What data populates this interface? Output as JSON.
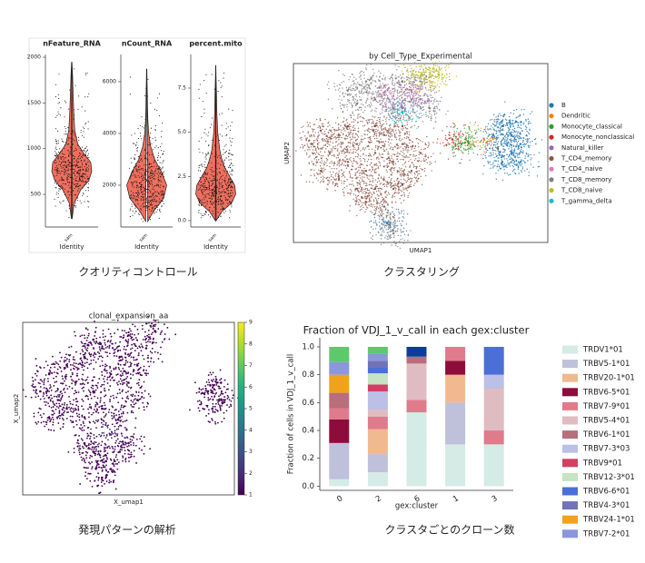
{
  "captions": [
    "クオリティコントロール",
    "クラスタリング",
    "発現パターンの解析",
    "クラスタごとのクローン数"
  ],
  "chart_data": [
    {
      "type": "violin",
      "title": "nFeature_RNA",
      "xlabel": "Identity",
      "categories": [
        "sam"
      ],
      "color": "#ef6f5f",
      "ylim": [
        143,
        2030
      ],
      "yticks": [
        500,
        1000,
        1500,
        2000
      ],
      "violin": {
        "y": [
          230,
          400,
          550,
          650,
          750,
          850,
          950,
          1050,
          1200,
          1400,
          1600,
          1800,
          1950
        ],
        "width": [
          0.02,
          0.12,
          0.45,
          0.85,
          1.0,
          0.95,
          0.6,
          0.3,
          0.15,
          0.1,
          0.07,
          0.04,
          0.01
        ]
      }
    },
    {
      "type": "violin",
      "title": "nCount_RNA",
      "xlabel": "Identity",
      "categories": [
        "sam"
      ],
      "color": "#ef6f5f",
      "ylim": [
        386,
        7050
      ],
      "yticks": [
        2000,
        4000,
        6000
      ],
      "violin": {
        "y": [
          600,
          1000,
          1500,
          2000,
          2500,
          3000,
          3500,
          4000,
          4500,
          5000,
          5500,
          6000,
          6500
        ],
        "width": [
          0.05,
          0.35,
          0.85,
          1.0,
          0.75,
          0.4,
          0.2,
          0.1,
          0.06,
          0.04,
          0.03,
          0.02,
          0.01
        ]
      }
    },
    {
      "type": "violin",
      "title": "percent.mito",
      "xlabel": "Identity",
      "categories": [
        "sam"
      ],
      "color": "#ef6f5f",
      "ylim": [
        -0.36,
        9.4
      ],
      "yticks": [
        {
          "value": 0,
          "label": "0.0"
        },
        {
          "value": 2.5,
          "label": "2.5"
        },
        {
          "value": 5,
          "label": "5.0"
        },
        {
          "value": 7.5,
          "label": "7.5"
        }
      ],
      "violin": {
        "y": [
          0,
          0.5,
          1,
          1.5,
          2,
          2.5,
          3,
          3.5,
          4,
          5,
          6,
          7,
          8,
          8.8
        ],
        "width": [
          0.02,
          0.3,
          0.8,
          1.0,
          0.95,
          0.7,
          0.45,
          0.3,
          0.2,
          0.1,
          0.06,
          0.04,
          0.02,
          0.005
        ]
      }
    },
    {
      "type": "scatter",
      "title": "by Cell_Type_Experimental",
      "xlabel": "UMAP1",
      "ylabel": "UMAP2",
      "xlim": [
        0,
        28
      ],
      "ylim": [
        0,
        20
      ],
      "legend": "right",
      "series": [
        {
          "name": "B",
          "color": "#1f77b4",
          "x": [
            22,
            23,
            24,
            25,
            24,
            23,
            22.5,
            24.5,
            25,
            10.3
          ],
          "y": [
            12,
            13,
            12,
            11,
            10,
            9,
            10.5,
            13.5,
            9,
            2.2
          ]
        },
        {
          "name": "Dendritic",
          "color": "#ff7f0e",
          "x": [
            21
          ],
          "y": [
            11.5
          ]
        },
        {
          "name": "Monocyte_classical",
          "color": "#2ca02c",
          "x": [
            18.5,
            19.2
          ],
          "y": [
            11,
            11.3
          ]
        },
        {
          "name": "Monocyte_nonclassical",
          "color": "#d62728",
          "x": [
            17.5
          ],
          "y": [
            11.5
          ]
        },
        {
          "name": "Natural_killer",
          "color": "#9467bd",
          "x": [
            12,
            14
          ],
          "y": [
            15,
            16
          ]
        },
        {
          "name": "T_CD4_memory",
          "color": "#8c564b",
          "x": [
            2,
            3,
            4,
            5,
            6,
            7,
            8,
            9,
            10,
            11,
            12,
            13,
            14,
            3,
            5,
            7,
            9,
            11,
            8,
            10,
            12,
            6,
            9,
            12
          ],
          "y": [
            11,
            12.5,
            10,
            12,
            9,
            11,
            8,
            10,
            12,
            9,
            11,
            8,
            10,
            8,
            7,
            6,
            6,
            6,
            4.5,
            4,
            6.5,
            13,
            13,
            13
          ]
        },
        {
          "name": "T_CD4_naive",
          "color": "#e377c2",
          "x": [
            10,
            13
          ],
          "y": [
            16.5,
            17
          ]
        },
        {
          "name": "T_CD8_memory",
          "color": "#7f7f7f",
          "x": [
            6,
            8,
            10,
            12,
            7,
            9,
            11,
            13,
            15,
            14,
            10.5,
            11
          ],
          "y": [
            17,
            18,
            17.5,
            18,
            15.5,
            16,
            15,
            16,
            15,
            18,
            2,
            1
          ]
        },
        {
          "name": "T_CD8_naive",
          "color": "#bcbd22",
          "x": [
            15,
            16,
            14
          ],
          "y": [
            18.5,
            18.8,
            18.7
          ]
        },
        {
          "name": "T_gamma_delta",
          "color": "#17becf",
          "x": [
            12
          ],
          "y": [
            14.5
          ]
        }
      ]
    },
    {
      "type": "colorscatter",
      "title": "clonal_expansion_aa",
      "xlabel": "X_umap1",
      "ylabel": "X_umap2",
      "xlim": [
        0,
        24
      ],
      "ylim": [
        0,
        20
      ],
      "colormap": "viridis",
      "clim": [
        1,
        9
      ],
      "cticks": [
        1,
        2,
        3,
        4,
        5,
        6,
        7,
        8,
        9
      ],
      "x": [
        2,
        3,
        4,
        5,
        6,
        7,
        8,
        9,
        10,
        11,
        12,
        13,
        14,
        5,
        7,
        9,
        11,
        13,
        8,
        12,
        15,
        3,
        7,
        8,
        9,
        10,
        9,
        11,
        10,
        12,
        21,
        22,
        22.5,
        21.5
      ],
      "y": [
        12,
        14,
        11,
        15,
        13,
        16,
        12,
        17,
        14,
        16,
        13,
        15,
        17,
        10,
        9,
        10,
        9,
        11,
        18,
        18.5,
        19,
        9,
        6,
        5,
        4,
        3,
        2,
        5,
        7,
        6,
        12,
        13,
        11,
        10
      ],
      "values": [
        1,
        1,
        1,
        1,
        1,
        1,
        1,
        1,
        1,
        1,
        1,
        1,
        1,
        1,
        1,
        1,
        1,
        1,
        1,
        1,
        1,
        1,
        1,
        1,
        1,
        1,
        1,
        1,
        2,
        1,
        1,
        1,
        1,
        1
      ]
    },
    {
      "type": "stackedbar",
      "title": "Fraction of VDJ_1_v_call in each gex:cluster",
      "xlabel": "gex:cluster",
      "ylabel": "Fraction of cells in VDJ_1_v_call",
      "categories": [
        "0",
        "2",
        "6",
        "1",
        "3"
      ],
      "ylim": [
        -0.03,
        1.065
      ],
      "yticks": [
        {
          "value": 0,
          "label": "0.0"
        },
        {
          "value": 0.2,
          "label": "0.2"
        },
        {
          "value": 0.4,
          "label": "0.4"
        },
        {
          "value": 0.6,
          "label": "0.6"
        },
        {
          "value": 0.8,
          "label": "0.8"
        },
        {
          "value": 1,
          "label": "1.0"
        }
      ],
      "legend": "right",
      "series": [
        {
          "name": "TRDV1*01",
          "color": "#d5ebe6",
          "values": [
            0.05,
            0.1,
            0.53,
            0.3,
            0.3
          ]
        },
        {
          "name": "TRBV5-1*01",
          "color": "#bfc0d9",
          "values": [
            0.26,
            0.13,
            0,
            0.3,
            0
          ]
        },
        {
          "name": "TRBV20-1*01",
          "color": "#f0b98f",
          "values": [
            0,
            0.18,
            0,
            0.2,
            0
          ]
        },
        {
          "name": "TRBV6-5*01",
          "color": "#8e0c3c",
          "values": [
            0.17,
            0,
            0,
            0.1,
            0
          ]
        },
        {
          "name": "TRBV7-9*01",
          "color": "#e07b8c",
          "values": [
            0.08,
            0.09,
            0.09,
            0.1,
            0.1
          ]
        },
        {
          "name": "TRBV5-4*01",
          "color": "#dfbcc2",
          "values": [
            0,
            0.05,
            0.26,
            0,
            0.3
          ]
        },
        {
          "name": "TRBV6-1*01",
          "color": "#b86e7b",
          "values": [
            0.11,
            0,
            0.05,
            0,
            0
          ]
        },
        {
          "name": "TRBV7-3*03",
          "color": "#bcbfe6",
          "values": [
            0,
            0.13,
            0,
            0,
            0.1
          ]
        },
        {
          "name": "TRBV9*01",
          "color": "#d23f63",
          "values": [
            0,
            0.05,
            0,
            0,
            0
          ]
        },
        {
          "name": "TRBV12-3*01",
          "color": "#c6e3c4",
          "values": [
            0,
            0.08,
            0,
            0,
            0
          ]
        },
        {
          "name": "TRBV6-6*01",
          "color": "#4a6fd6",
          "values": [
            0,
            0.04,
            0,
            0,
            0.2
          ]
        },
        {
          "name": "TRBV4-3*01",
          "color": "#7173b8",
          "values": [
            0,
            0.05,
            0,
            0,
            0
          ]
        },
        {
          "name": "TRBV24-1*01",
          "color": "#f0a21c",
          "values": [
            0.13,
            0,
            0,
            0,
            0
          ]
        },
        {
          "name": "TRBV7-2*01",
          "color": "#8b96de",
          "values": [
            0.09,
            0.05,
            0,
            0,
            0
          ]
        },
        {
          "name": null,
          "color": "#5cc96a",
          "values": [
            0.11,
            0.05,
            0,
            0,
            0
          ]
        },
        {
          "name": null,
          "color": "#0b3d9e",
          "values": [
            0,
            0,
            0.07,
            0,
            0
          ]
        }
      ]
    }
  ]
}
